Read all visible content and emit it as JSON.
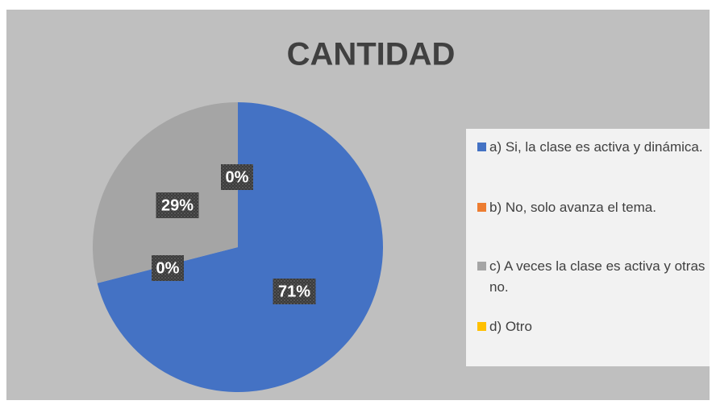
{
  "chart_data": {
    "type": "pie",
    "title": "CANTIDAD",
    "categories": [
      "a) Si, la clase es activa y dinámica.",
      "b) No, solo avanza el tema.",
      "c) A veces la clase es activa y otras no.",
      "d) Otro"
    ],
    "values": [
      71,
      0,
      29,
      0
    ],
    "value_labels": [
      "71%",
      "0%",
      "29%",
      "0%"
    ],
    "colors": [
      "#4472c4",
      "#ed7d31",
      "#a5a5a5",
      "#ffc000"
    ],
    "legend": "right"
  }
}
